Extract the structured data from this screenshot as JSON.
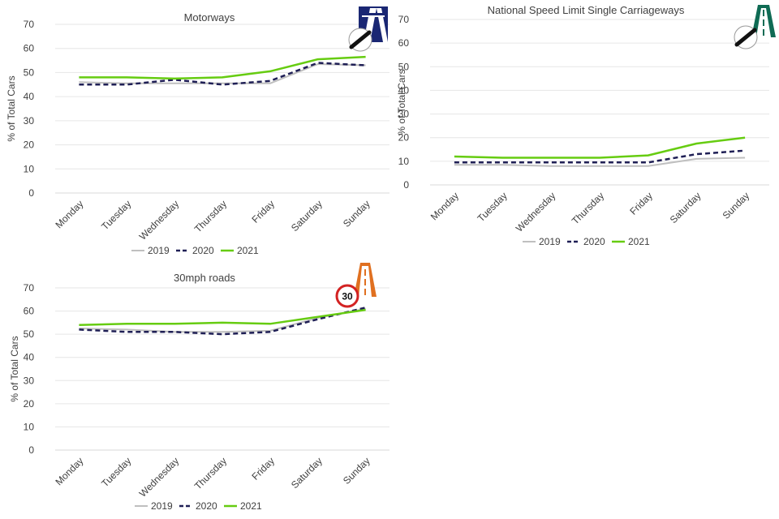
{
  "colors": {
    "2019": "#bfbfbf",
    "2020": "#1f1f55",
    "2021": "#66cc11",
    "motorway": "#1a2773",
    "rural": "#0f6b54",
    "urban": "#e07020",
    "sign_red": "#d32222"
  },
  "icons": [
    "motorway-sign-icon",
    "single-carriageway-sign-icon",
    "30mph-road-sign-icon",
    "national-speed-limit-icon",
    "speed-limit-30-icon"
  ],
  "speed_sign_text": "30",
  "chart_data": [
    {
      "id": "motorways",
      "type": "line",
      "title": "Motorways",
      "ylabel": "% of Total Cars",
      "xlabel": "",
      "ylim": [
        0,
        70
      ],
      "yticks": [
        0,
        10,
        20,
        30,
        40,
        50,
        60,
        70
      ],
      "categories": [
        "Monday",
        "Tuesday",
        "Wednesday",
        "Thursday",
        "Friday",
        "Saturday",
        "Sunday"
      ],
      "series": [
        {
          "name": "2019",
          "values": [
            46,
            45.5,
            45.5,
            45.5,
            45.5,
            53.5,
            53
          ]
        },
        {
          "name": "2020",
          "values": [
            45,
            45,
            47,
            45,
            46.5,
            54,
            53
          ]
        },
        {
          "name": "2021",
          "values": [
            48,
            48,
            47.5,
            48,
            50.5,
            55.5,
            56.5
          ]
        }
      ],
      "legend": "bottom"
    },
    {
      "id": "nsl-single",
      "type": "line",
      "title": "National Speed Limit Single Carriageways",
      "ylabel": "% of Total Cars",
      "xlabel": "",
      "ylim": [
        0,
        70
      ],
      "yticks": [
        0,
        10,
        20,
        30,
        40,
        50,
        60,
        70
      ],
      "categories": [
        "Monday",
        "Tuesday",
        "Wednesday",
        "Thursday",
        "Friday",
        "Saturday",
        "Sunday"
      ],
      "series": [
        {
          "name": "2019",
          "values": [
            8.5,
            8.5,
            8,
            8,
            8,
            11,
            11.5
          ]
        },
        {
          "name": "2020",
          "values": [
            9.5,
            9.5,
            9.5,
            9.5,
            9.5,
            13,
            14.5
          ]
        },
        {
          "name": "2021",
          "values": [
            12,
            11.5,
            11.5,
            11.5,
            12.5,
            17.5,
            20
          ]
        }
      ],
      "legend": "bottom"
    },
    {
      "id": "30mph",
      "type": "line",
      "title": "30mph roads",
      "ylabel": "% of Total Cars",
      "xlabel": "",
      "ylim": [
        0,
        70
      ],
      "yticks": [
        0,
        10,
        20,
        30,
        40,
        50,
        60,
        70
      ],
      "categories": [
        "Monday",
        "Tuesday",
        "Wednesday",
        "Thursday",
        "Friday",
        "Saturday",
        "Sunday"
      ],
      "series": [
        {
          "name": "2019",
          "values": [
            52.5,
            52,
            51,
            51,
            51.5,
            57,
            61
          ]
        },
        {
          "name": "2020",
          "values": [
            52,
            51,
            51,
            50,
            51,
            56.5,
            61.5
          ]
        },
        {
          "name": "2021",
          "values": [
            54,
            54.5,
            54.5,
            55,
            54.5,
            57.5,
            60.5
          ]
        }
      ],
      "legend": "bottom"
    }
  ]
}
